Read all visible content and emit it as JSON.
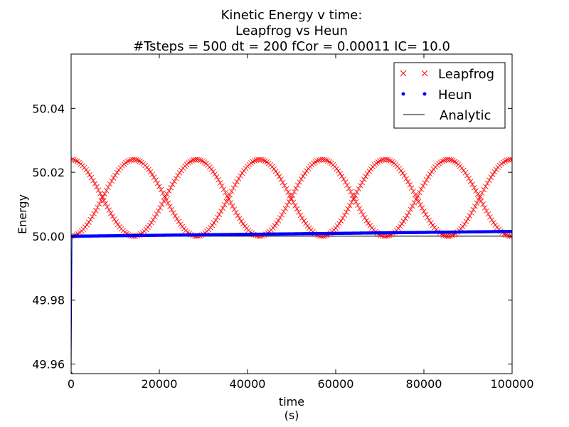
{
  "chart_data": {
    "type": "scatter",
    "title_lines": [
      "Kinetic Energy v time:",
      "Leapfrog vs Heun",
      "#Tsteps = 500 dt = 200 fCor = 0.00011 IC= 10.0"
    ],
    "xlabel_lines": [
      "time",
      "(s)"
    ],
    "ylabel": "Energy",
    "xlim": [
      0,
      100000
    ],
    "ylim": [
      49.957,
      50.057
    ],
    "xticks": [
      0,
      20000,
      40000,
      60000,
      80000,
      100000
    ],
    "xtick_labels": [
      "0",
      "20000",
      "40000",
      "60000",
      "80000",
      "100000"
    ],
    "yticks": [
      49.96,
      49.98,
      50.0,
      50.02,
      50.04
    ],
    "ytick_labels": [
      "49.96",
      "49.98",
      "50.00",
      "50.02",
      "50.04"
    ],
    "grid": false,
    "legend_position": "top-right",
    "n_steps": 500,
    "dt": 200,
    "series": [
      {
        "name": "Leapfrog",
        "marker": "x",
        "color": "#ff0000",
        "description": "two interleaved branches oscillating between 50.000 and 50.024",
        "y_min": 50.0,
        "y_max": 50.024,
        "oscillation_period": 28500
      },
      {
        "name": "Heun",
        "marker": "dot",
        "color": "#0000ff",
        "y_start": 50.0,
        "y_end": 50.0015,
        "first_point": 49.957
      },
      {
        "name": "Analytic",
        "marker": "line",
        "color": "#000000",
        "y": 50.0
      }
    ]
  }
}
